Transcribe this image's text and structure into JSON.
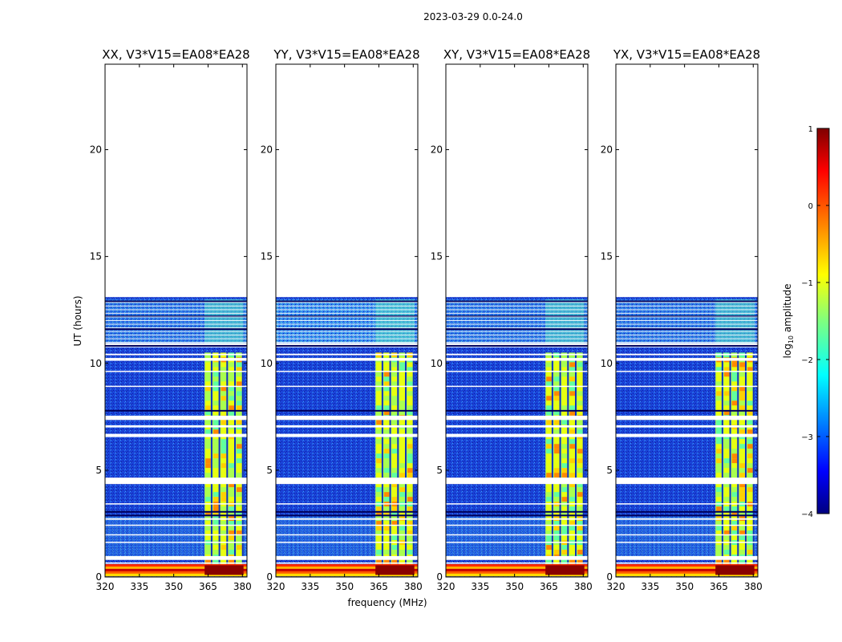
{
  "figure_title": "2023-03-29 0.0-24.0",
  "chart_data": {
    "type": "heatmap",
    "xlabel": "frequency (MHz)",
    "ylabel": "UT (hours)",
    "xlim": [
      320,
      382
    ],
    "ylim": [
      0,
      24
    ],
    "xticks": [
      320,
      335,
      350,
      365,
      380
    ],
    "yticks": [
      0,
      5,
      10,
      15,
      20
    ],
    "data_extent_hours": [
      0,
      13.1
    ],
    "rfi_band_mhz": [
      363.5,
      380.5
    ],
    "colorbar": {
      "label_prefix": "log",
      "label_sub": "10",
      "label_suffix": " amplitude",
      "range": [
        -4,
        1
      ],
      "ticks": [
        1,
        0,
        -1,
        -2,
        -3,
        -4
      ],
      "colormap": "jet"
    },
    "panels": [
      {
        "title": "XX, V3*V15=EA08*EA28",
        "polarization": "XX"
      },
      {
        "title": "YY, V3*V15=EA08*EA28",
        "polarization": "YY"
      },
      {
        "title": "XY, V3*V15=EA08*EA28",
        "polarization": "XY"
      },
      {
        "title": "YX, V3*V15=EA08*EA28",
        "polarization": "YX"
      }
    ]
  }
}
